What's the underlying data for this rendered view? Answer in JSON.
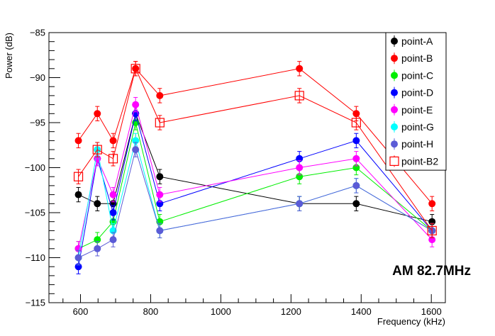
{
  "chart_data": {
    "type": "line",
    "title": "",
    "xlabel": "Frequency (kHz)",
    "ylabel": "Power (dB)",
    "xlim": [
      510,
      1640
    ],
    "ylim": [
      -115,
      -85
    ],
    "xticks": [
      600,
      800,
      1000,
      1200,
      1400,
      1600
    ],
    "yticks": [
      -115,
      -110,
      -105,
      -100,
      -95,
      -90,
      -85
    ],
    "grid": false,
    "legend_position": "top-right",
    "annotation": "AM 82.7MHz",
    "series": [
      {
        "name": "point-A",
        "color": "#000000",
        "marker": "circle",
        "x": [
          594,
          648,
          693,
          757,
          826,
          1224,
          1386,
          1602
        ],
        "y": [
          -103,
          -104,
          -104,
          -94,
          -101,
          -104,
          -104,
          -106
        ],
        "err": [
          0.8,
          0.8,
          0.8,
          0.8,
          0.8,
          0.8,
          0.8,
          0.8
        ]
      },
      {
        "name": "point-B",
        "color": "#ff0000",
        "marker": "circle",
        "x": [
          594,
          648,
          693,
          757,
          826,
          1224,
          1386,
          1602
        ],
        "y": [
          -97,
          -94,
          -97,
          -89,
          -92,
          -89,
          -94,
          -104
        ],
        "err": [
          0.8,
          0.8,
          0.8,
          0.8,
          0.8,
          0.8,
          0.8,
          0.8
        ]
      },
      {
        "name": "point-C",
        "color": "#00ee00",
        "marker": "circle",
        "x": [
          594,
          648,
          693,
          757,
          826,
          1224,
          1386,
          1602
        ],
        "y": [
          -109,
          -108,
          -106,
          -95,
          -106,
          -101,
          -100,
          -107
        ],
        "err": [
          0.8,
          0.8,
          0.8,
          0.8,
          0.8,
          0.8,
          0.8,
          0.8
        ]
      },
      {
        "name": "point-D",
        "color": "#0000ff",
        "marker": "circle",
        "x": [
          594,
          648,
          693,
          757,
          826,
          1224,
          1386,
          1602
        ],
        "y": [
          -111,
          -99,
          -105,
          -94,
          -104,
          -99,
          -97,
          -107
        ],
        "err": [
          0.8,
          0.8,
          0.8,
          0.8,
          0.8,
          0.8,
          0.8,
          0.8
        ]
      },
      {
        "name": "point-E",
        "color": "#ff00ff",
        "marker": "circle",
        "x": [
          594,
          648,
          693,
          757,
          826,
          1224,
          1386,
          1602
        ],
        "y": [
          -109,
          -99,
          -103,
          -93,
          -103,
          -100,
          -99,
          -108
        ],
        "err": [
          0.8,
          0.8,
          0.8,
          0.8,
          0.8,
          0.8,
          0.8,
          0.8
        ]
      },
      {
        "name": "point-G",
        "color": "#00ffff",
        "marker": "circle",
        "x": [
          594,
          648,
          693,
          757,
          826,
          1224,
          1386,
          1602
        ],
        "y": [
          -110,
          -98,
          -107,
          -97,
          -107,
          -104,
          -102,
          -107
        ],
        "err": [
          0.8,
          0.8,
          0.8,
          0.8,
          0.8,
          0.8,
          0.8,
          0.8
        ]
      },
      {
        "name": "point-H",
        "color": "#5b5bd6",
        "marker": "circle",
        "x": [
          594,
          648,
          693,
          757,
          826,
          1224,
          1386,
          1602
        ],
        "y": [
          -110,
          -109,
          -108,
          -98,
          -107,
          -104,
          -102,
          -107
        ],
        "err": [
          0.8,
          0.8,
          0.8,
          0.8,
          0.8,
          0.8,
          0.8,
          0.8
        ]
      },
      {
        "name": "point-B2",
        "color": "#ff0000",
        "marker": "open-square",
        "x": [
          594,
          648,
          693,
          757,
          826,
          1224,
          1386,
          1602
        ],
        "y": [
          -101,
          -98,
          -99,
          -89,
          -95,
          -92,
          -95,
          -107
        ],
        "err": [
          0.8,
          0.8,
          0.8,
          0.8,
          0.8,
          0.8,
          0.8,
          0.8
        ]
      }
    ]
  }
}
